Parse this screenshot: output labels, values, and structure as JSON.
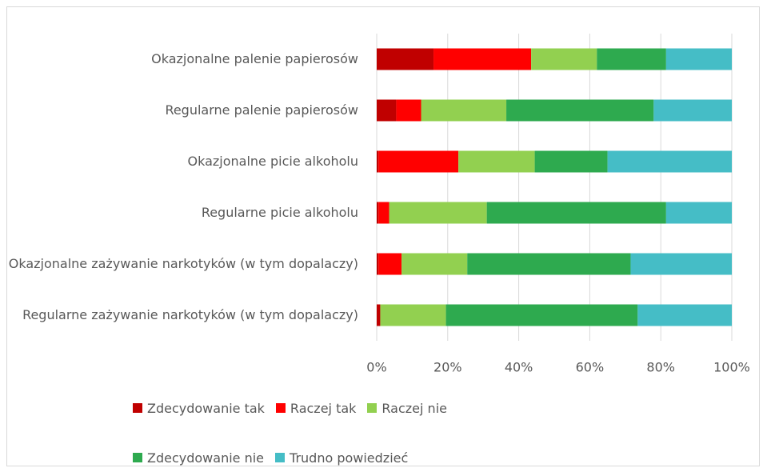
{
  "chart_data": {
    "type": "stacked_barh",
    "categories": [
      "Okazjonalne palenie papierosów",
      "Regularne palenie papierosów",
      "Okazjonalne picie alkoholu",
      "Regularne picie alkoholu",
      "Okazjonalne zażywanie narkotyków (w tym dopalaczy)",
      "Regularne zażywanie narkotyków (w tym dopalaczy)"
    ],
    "series": [
      {
        "name": "Zdecydowanie tak",
        "color": "#c00000",
        "values": [
          16,
          5.5,
          0.5,
          0.5,
          0.5,
          1
        ]
      },
      {
        "name": "Raczej tak",
        "color": "#ff0000",
        "values": [
          27.5,
          7,
          22.5,
          3,
          6.5,
          0
        ]
      },
      {
        "name": "Raczej nie",
        "color": "#92d050",
        "values": [
          18.5,
          24,
          21.5,
          27.5,
          18.5,
          18.5
        ]
      },
      {
        "name": "Zdecydowanie nie",
        "color": "#2eaa4f",
        "values": [
          19.5,
          41.5,
          20.5,
          50.5,
          46,
          54
        ]
      },
      {
        "name": "Trudno powiedzieć",
        "color": "#45bdc6",
        "values": [
          18.5,
          22,
          35,
          18.5,
          28.5,
          26.5
        ]
      }
    ],
    "xlim": [
      0,
      100
    ],
    "xticks": [
      {
        "value": 0,
        "label": "0%"
      },
      {
        "value": 20,
        "label": "20%"
      },
      {
        "value": 40,
        "label": "40%"
      },
      {
        "value": 60,
        "label": "60%"
      },
      {
        "value": 80,
        "label": "80%"
      },
      {
        "value": 100,
        "label": "100%"
      }
    ],
    "grid": true
  }
}
